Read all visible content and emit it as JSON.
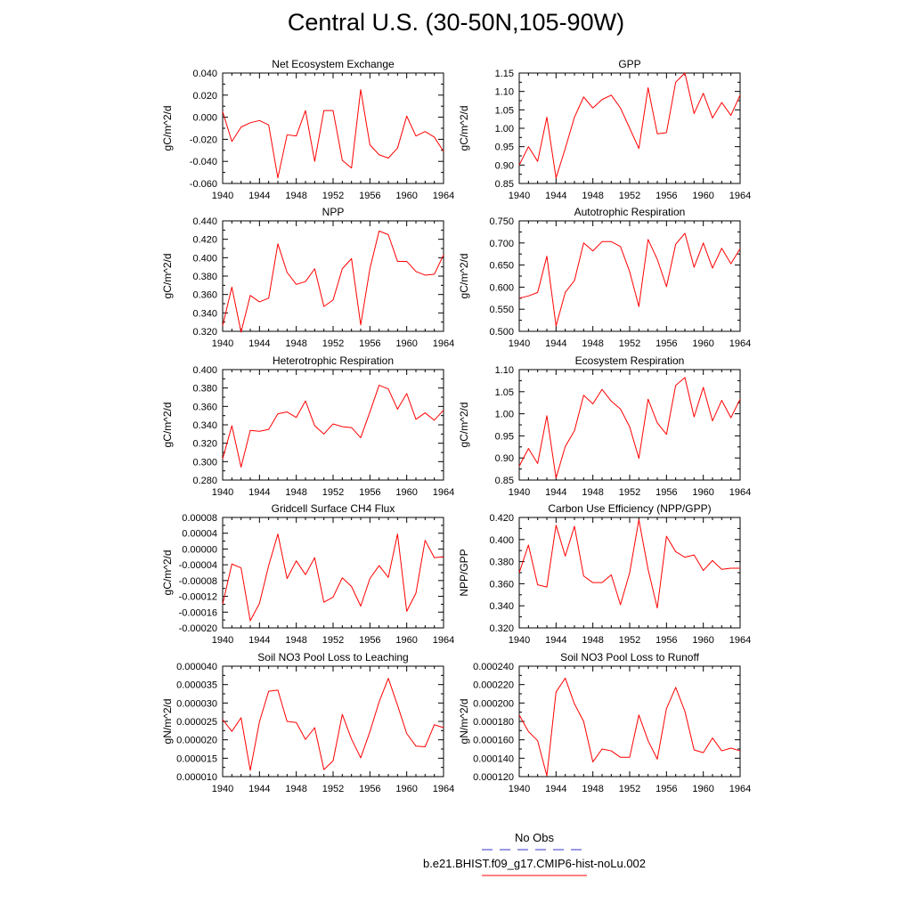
{
  "title": "Central U.S. (30-50N,105-90W)",
  "colors": {
    "model": "#ff0000",
    "obs": "#3333cc"
  },
  "legend": {
    "obs_label": "No Obs",
    "model_label": "b.e21.BHIST.f09_g17.CMIP6-hist-noLu.002"
  },
  "chart_data": [
    {
      "type": "line",
      "title": "Net Ecosystem Exchange",
      "ylabel": "gC/m^2/d",
      "xlabel": "",
      "xlim": [
        1940,
        1964
      ],
      "ylim": [
        -0.06,
        0.04
      ],
      "x_ticks": [
        "1940",
        "1944",
        "1948",
        "1952",
        "1956",
        "1960",
        "1964"
      ],
      "y_ticks": [
        "-0.060",
        "-0.040",
        "-0.020",
        "0.000",
        "0.020",
        "0.040"
      ],
      "series": [
        {
          "x": [
            1940,
            1941,
            1942,
            1943,
            1944,
            1945,
            1946,
            1947,
            1948,
            1949,
            1950,
            1951,
            1952,
            1953,
            1954,
            1955,
            1956,
            1957,
            1958,
            1959,
            1960,
            1961,
            1962,
            1963,
            1964
          ],
          "values": [
            0.005,
            -0.022,
            -0.009,
            -0.005,
            -0.003,
            -0.007,
            -0.055,
            -0.016,
            -0.017,
            0.006,
            -0.04,
            0.006,
            0.006,
            -0.039,
            -0.046,
            0.025,
            -0.025,
            -0.034,
            -0.037,
            -0.028,
            0.001,
            -0.017,
            -0.013,
            -0.018,
            -0.031
          ]
        }
      ]
    },
    {
      "type": "line",
      "title": "GPP",
      "ylabel": "gC/m^2/d",
      "xlabel": "",
      "xlim": [
        1940,
        1964
      ],
      "ylim": [
        0.85,
        1.15
      ],
      "x_ticks": [
        "1940",
        "1944",
        "1948",
        "1952",
        "1956",
        "1960",
        "1964"
      ],
      "y_ticks": [
        "0.85",
        "0.90",
        "0.95",
        "1.00",
        "1.05",
        "1.10",
        "1.15"
      ],
      "series": [
        {
          "x": [
            1940,
            1941,
            1942,
            1943,
            1944,
            1945,
            1946,
            1947,
            1948,
            1949,
            1950,
            1951,
            1952,
            1953,
            1954,
            1955,
            1956,
            1957,
            1958,
            1959,
            1960,
            1961,
            1962,
            1963,
            1964
          ],
          "values": [
            0.9,
            0.95,
            0.91,
            1.03,
            0.865,
            0.945,
            1.03,
            1.085,
            1.055,
            1.078,
            1.09,
            1.055,
            1.0,
            0.945,
            1.11,
            0.985,
            0.988,
            1.125,
            1.15,
            1.04,
            1.095,
            1.028,
            1.07,
            1.035,
            1.09
          ]
        }
      ]
    },
    {
      "type": "line",
      "title": "NPP",
      "ylabel": "gC/m^2/d",
      "xlabel": "",
      "xlim": [
        1940,
        1964
      ],
      "ylim": [
        0.32,
        0.44
      ],
      "x_ticks": [
        "1940",
        "1944",
        "1948",
        "1952",
        "1956",
        "1960",
        "1964"
      ],
      "y_ticks": [
        "0.320",
        "0.340",
        "0.360",
        "0.380",
        "0.400",
        "0.420",
        "0.440"
      ],
      "series": [
        {
          "x": [
            1940,
            1941,
            1942,
            1943,
            1944,
            1945,
            1946,
            1947,
            1948,
            1949,
            1950,
            1951,
            1952,
            1953,
            1954,
            1955,
            1956,
            1957,
            1958,
            1959,
            1960,
            1961,
            1962,
            1963,
            1964
          ],
          "values": [
            0.326,
            0.368,
            0.319,
            0.359,
            0.352,
            0.356,
            0.415,
            0.384,
            0.371,
            0.374,
            0.388,
            0.347,
            0.354,
            0.388,
            0.399,
            0.327,
            0.388,
            0.429,
            0.425,
            0.396,
            0.396,
            0.385,
            0.381,
            0.382,
            0.403
          ]
        }
      ]
    },
    {
      "type": "line",
      "title": "Autotrophic Respiration",
      "ylabel": "gC/m^2/d",
      "xlabel": "",
      "xlim": [
        1940,
        1964
      ],
      "ylim": [
        0.5,
        0.75
      ],
      "x_ticks": [
        "1940",
        "1944",
        "1948",
        "1952",
        "1956",
        "1960",
        "1964"
      ],
      "y_ticks": [
        "0.500",
        "0.550",
        "0.600",
        "0.650",
        "0.700",
        "0.750"
      ],
      "series": [
        {
          "x": [
            1940,
            1941,
            1942,
            1943,
            1944,
            1945,
            1946,
            1947,
            1948,
            1949,
            1950,
            1951,
            1952,
            1953,
            1954,
            1955,
            1956,
            1957,
            1958,
            1959,
            1960,
            1961,
            1962,
            1963,
            1964
          ],
          "values": [
            0.575,
            0.58,
            0.588,
            0.67,
            0.512,
            0.588,
            0.615,
            0.7,
            0.682,
            0.703,
            0.703,
            0.692,
            0.635,
            0.556,
            0.708,
            0.663,
            0.601,
            0.697,
            0.722,
            0.645,
            0.7,
            0.643,
            0.688,
            0.653,
            0.687
          ]
        }
      ]
    },
    {
      "type": "line",
      "title": "Heterotrophic Respiration",
      "ylabel": "gC/m^2/d",
      "xlabel": "",
      "xlim": [
        1940,
        1964
      ],
      "ylim": [
        0.28,
        0.4
      ],
      "x_ticks": [
        "1940",
        "1944",
        "1948",
        "1952",
        "1956",
        "1960",
        "1964"
      ],
      "y_ticks": [
        "0.280",
        "0.300",
        "0.320",
        "0.340",
        "0.360",
        "0.380",
        "0.400"
      ],
      "series": [
        {
          "x": [
            1940,
            1941,
            1942,
            1943,
            1944,
            1945,
            1946,
            1947,
            1948,
            1949,
            1950,
            1951,
            1952,
            1953,
            1954,
            1955,
            1956,
            1957,
            1958,
            1959,
            1960,
            1961,
            1962,
            1963,
            1964
          ],
          "values": [
            0.303,
            0.339,
            0.294,
            0.334,
            0.333,
            0.335,
            0.352,
            0.354,
            0.348,
            0.366,
            0.339,
            0.33,
            0.341,
            0.338,
            0.337,
            0.326,
            0.354,
            0.383,
            0.379,
            0.357,
            0.374,
            0.346,
            0.353,
            0.345,
            0.356
          ]
        }
      ]
    },
    {
      "type": "line",
      "title": "Ecosystem Respiration",
      "ylabel": "gC/m^2/d",
      "xlabel": "",
      "xlim": [
        1940,
        1964
      ],
      "ylim": [
        0.84,
        1.12
      ],
      "x_ticks": [
        "1940",
        "1944",
        "1948",
        "1952",
        "1956",
        "1960",
        "1964"
      ],
      "y_ticks": [
        "0.85",
        "0.90",
        "0.95",
        "1.00",
        "1.05",
        "1.10"
      ],
      "series": [
        {
          "x": [
            1940,
            1941,
            1942,
            1943,
            1944,
            1945,
            1946,
            1947,
            1948,
            1949,
            1950,
            1951,
            1952,
            1953,
            1954,
            1955,
            1956,
            1957,
            1958,
            1959,
            1960,
            1961,
            1962,
            1963,
            1964
          ],
          "values": [
            0.875,
            0.92,
            0.882,
            1.003,
            0.845,
            0.925,
            0.965,
            1.055,
            1.033,
            1.07,
            1.04,
            1.02,
            0.975,
            0.895,
            1.045,
            0.985,
            0.956,
            1.08,
            1.1,
            1.0,
            1.075,
            0.99,
            1.042,
            0.998,
            1.045
          ]
        }
      ]
    },
    {
      "type": "line",
      "title": "Gridcell Surface CH4 Flux",
      "ylabel": "gC/m^2/d",
      "xlabel": "",
      "xlim": [
        1940,
        1964
      ],
      "ylim": [
        -0.0002,
        8e-05
      ],
      "x_ticks": [
        "1940",
        "1944",
        "1948",
        "1952",
        "1956",
        "1960",
        "1964"
      ],
      "y_ticks": [
        "-0.00020",
        "-0.00016",
        "-0.00012",
        "-0.00008",
        "-0.00004",
        "0.00000",
        "0.00004",
        "0.00008"
      ],
      "series": [
        {
          "x": [
            1940,
            1941,
            1942,
            1943,
            1944,
            1945,
            1946,
            1947,
            1948,
            1949,
            1950,
            1951,
            1952,
            1953,
            1954,
            1955,
            1956,
            1957,
            1958,
            1959,
            1960,
            1961,
            1962,
            1963,
            1964
          ],
          "values": [
            -0.00014,
            -3.8e-05,
            -4.8e-05,
            -0.000182,
            -0.000138,
            -4.2e-05,
            3.8e-05,
            -7.5e-05,
            -3e-05,
            -6.5e-05,
            -2.2e-05,
            -0.000135,
            -0.000122,
            -7.3e-05,
            -9.5e-05,
            -0.000145,
            -7.5e-05,
            -4.2e-05,
            -7.2e-05,
            3.8e-05,
            -0.000158,
            -0.000112,
            2.2e-05,
            -2.2e-05,
            -2e-05
          ]
        }
      ]
    },
    {
      "type": "line",
      "title": "Carbon Use Efficiency (NPP/GPP)",
      "ylabel": "NPP/GPP",
      "xlabel": "",
      "xlim": [
        1940,
        1964
      ],
      "ylim": [
        0.32,
        0.42
      ],
      "x_ticks": [
        "1940",
        "1944",
        "1948",
        "1952",
        "1956",
        "1960",
        "1964"
      ],
      "y_ticks": [
        "0.320",
        "0.340",
        "0.360",
        "0.380",
        "0.400",
        "0.420"
      ],
      "series": [
        {
          "x": [
            1940,
            1941,
            1942,
            1943,
            1944,
            1945,
            1946,
            1947,
            1948,
            1949,
            1950,
            1951,
            1952,
            1953,
            1954,
            1955,
            1956,
            1957,
            1958,
            1959,
            1960,
            1961,
            1962,
            1963,
            1964
          ],
          "values": [
            0.37,
            0.395,
            0.359,
            0.357,
            0.413,
            0.385,
            0.412,
            0.367,
            0.361,
            0.361,
            0.368,
            0.341,
            0.37,
            0.418,
            0.373,
            0.338,
            0.403,
            0.389,
            0.384,
            0.386,
            0.372,
            0.381,
            0.373,
            0.374,
            0.374
          ]
        }
      ]
    },
    {
      "type": "line",
      "title": "Soil NO3 Pool Loss to Leaching",
      "ylabel": "gN/m^2/d",
      "xlabel": "",
      "xlim": [
        1940,
        1964
      ],
      "ylim": [
        1e-05,
        4e-05
      ],
      "x_ticks": [
        "1940",
        "1944",
        "1948",
        "1952",
        "1956",
        "1960",
        "1964"
      ],
      "y_ticks": [
        "0.000010",
        "0.000015",
        "0.000020",
        "0.000025",
        "0.000030",
        "0.000035",
        "0.000040"
      ],
      "series": [
        {
          "x": [
            1940,
            1941,
            1942,
            1943,
            1944,
            1945,
            1946,
            1947,
            1948,
            1949,
            1950,
            1951,
            1952,
            1953,
            1954,
            1955,
            1956,
            1957,
            1958,
            1959,
            1960,
            1961,
            1962,
            1963,
            1964
          ],
          "values": [
            2.55e-05,
            2.23e-05,
            2.6e-05,
            1.17e-05,
            2.49e-05,
            3.32e-05,
            3.35e-05,
            2.5e-05,
            2.47e-05,
            2.01e-05,
            2.33e-05,
            1.19e-05,
            1.43e-05,
            2.69e-05,
            2.02e-05,
            1.51e-05,
            2.22e-05,
            3.03e-05,
            3.67e-05,
            2.94e-05,
            2.17e-05,
            1.83e-05,
            1.81e-05,
            2.41e-05,
            2.33e-05
          ]
        }
      ]
    },
    {
      "type": "line",
      "title": "Soil NO3 Pool Loss to Runoff",
      "ylabel": "gN/m^2/d",
      "xlabel": "",
      "xlim": [
        1940,
        1964
      ],
      "ylim": [
        0.00012,
        0.00024
      ],
      "x_ticks": [
        "1940",
        "1944",
        "1948",
        "1952",
        "1956",
        "1960",
        "1964"
      ],
      "y_ticks": [
        "0.000120",
        "0.000140",
        "0.000160",
        "0.000180",
        "0.000200",
        "0.000220",
        "0.000240"
      ],
      "series": [
        {
          "x": [
            1940,
            1941,
            1942,
            1943,
            1944,
            1945,
            1946,
            1947,
            1948,
            1949,
            1950,
            1951,
            1952,
            1953,
            1954,
            1955,
            1956,
            1957,
            1958,
            1959,
            1960,
            1961,
            1962,
            1963,
            1964
          ],
          "values": [
            0.000187,
            0.000169,
            0.000159,
            0.000121,
            0.000212,
            0.000227,
            0.000199,
            0.00018,
            0.000136,
            0.00015,
            0.000148,
            0.000141,
            0.000141,
            0.000187,
            0.000159,
            0.000139,
            0.000194,
            0.000217,
            0.000191,
            0.000149,
            0.000146,
            0.000162,
            0.000148,
            0.000151,
            0.000148
          ]
        }
      ]
    }
  ]
}
